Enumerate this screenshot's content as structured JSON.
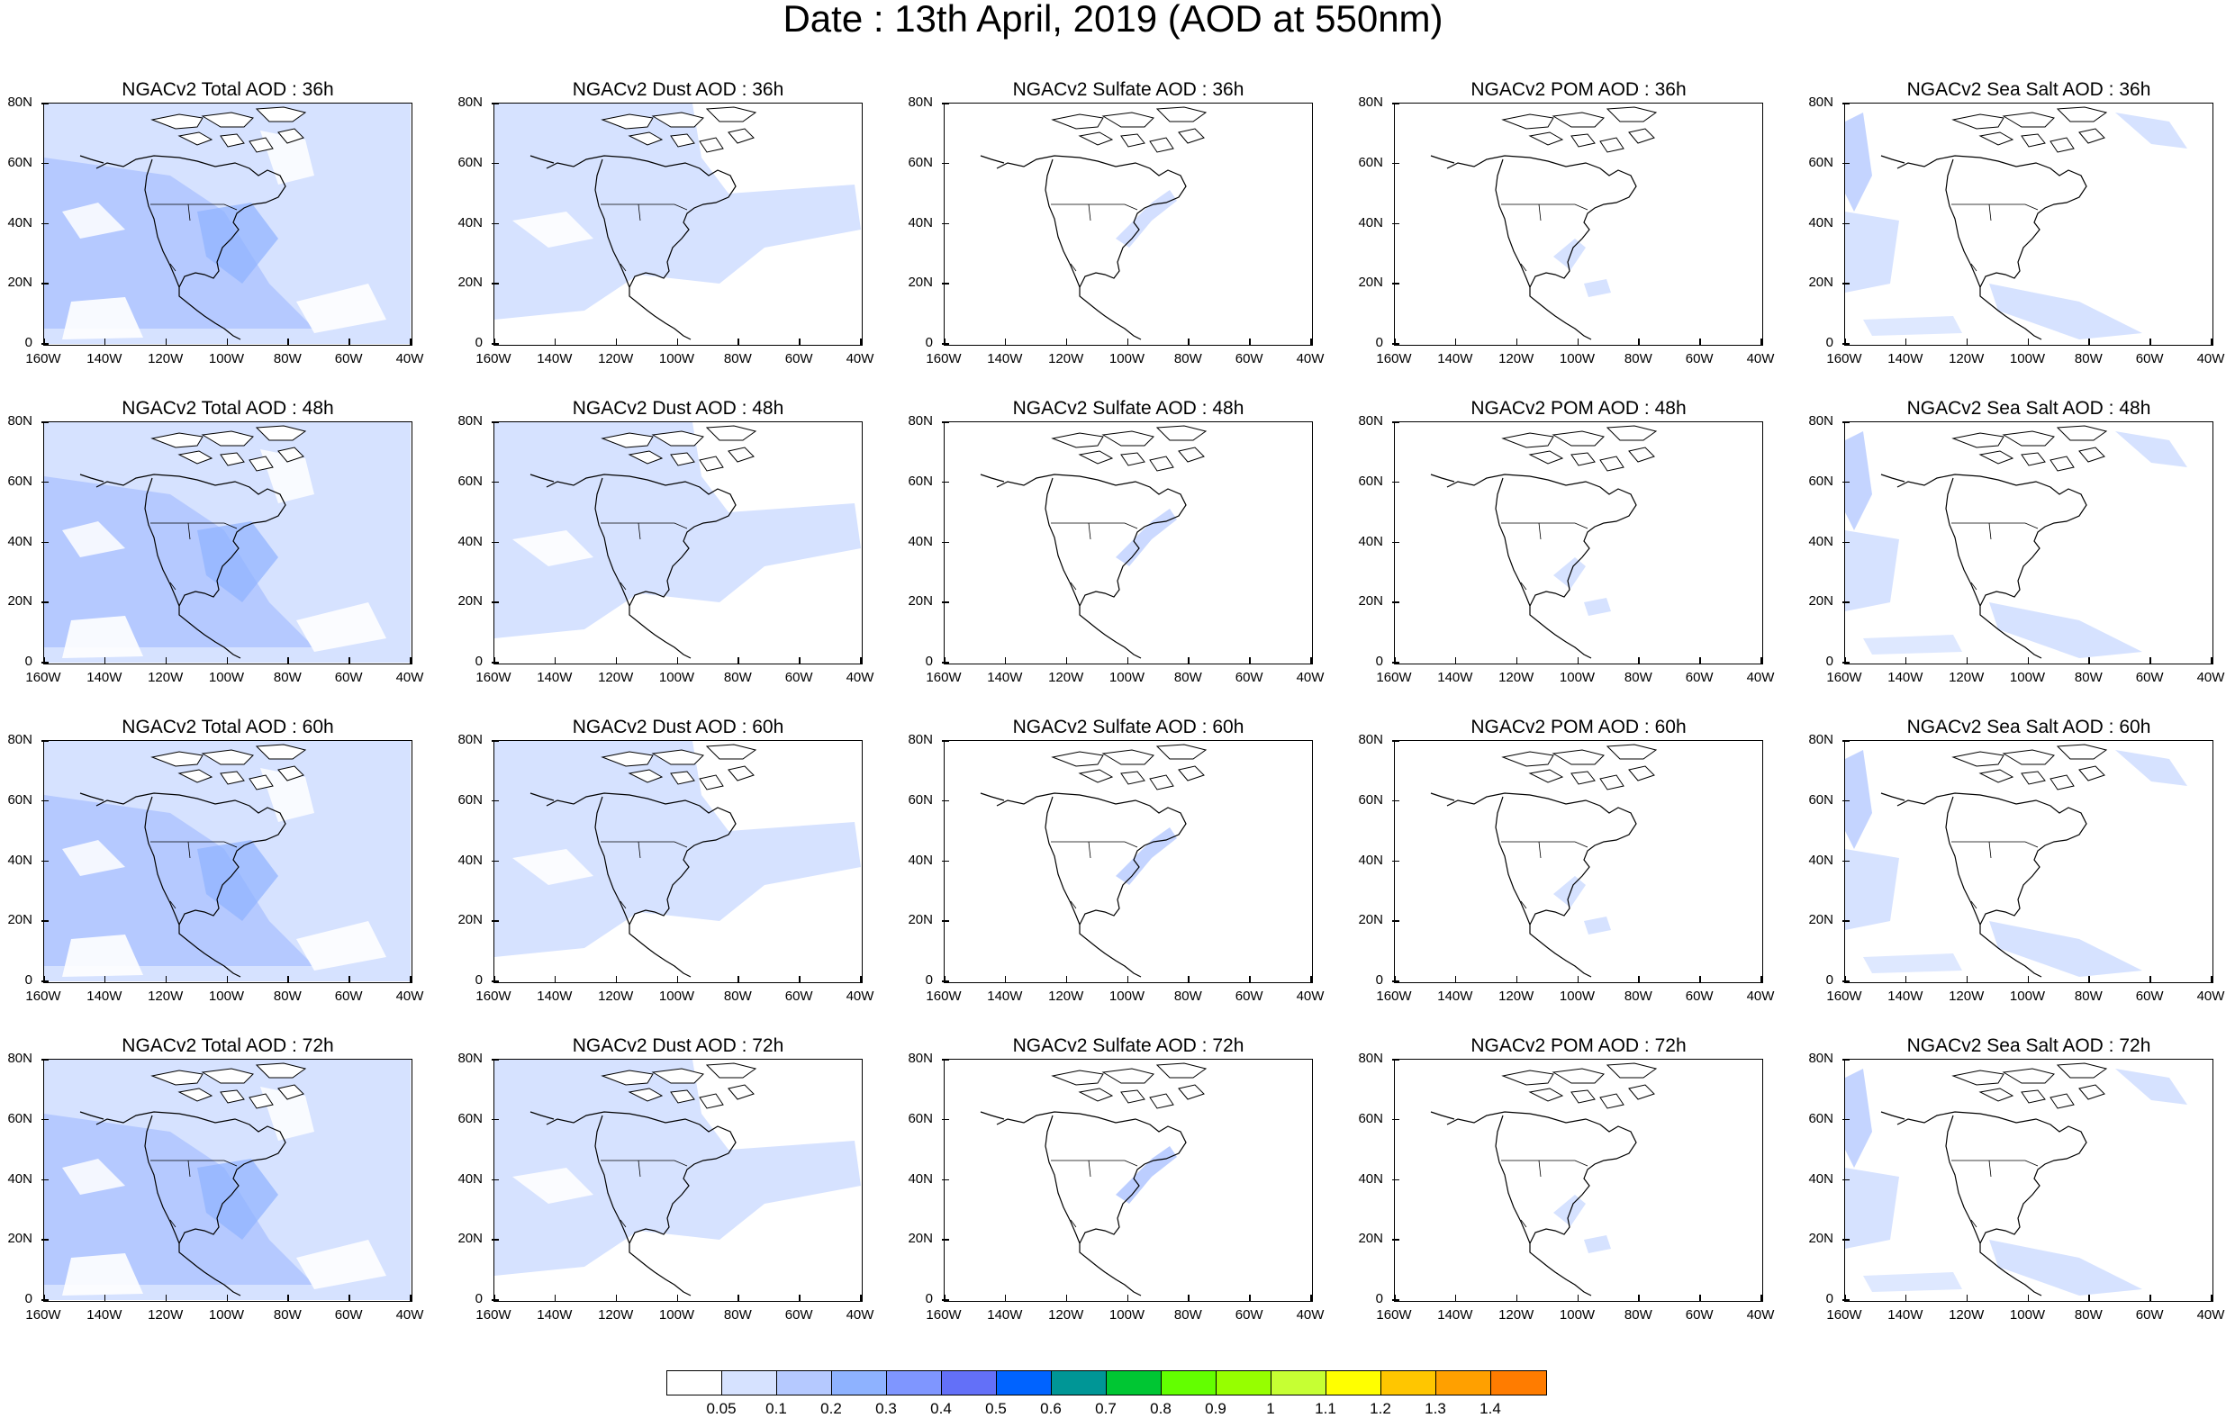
{
  "title": "Date : 13th April, 2019 (AOD at 550nm)",
  "panels": [
    [
      "NGACv2 Total AOD : 36h",
      "NGACv2 Dust AOD : 36h",
      "NGACv2 Sulfate AOD : 36h",
      "NGACv2 POM AOD : 36h",
      "NGACv2 Sea Salt AOD : 36h"
    ],
    [
      "NGACv2 Total AOD : 48h",
      "NGACv2 Dust AOD : 48h",
      "NGACv2 Sulfate AOD : 48h",
      "NGACv2 POM AOD : 48h",
      "NGACv2 Sea Salt AOD : 48h"
    ],
    [
      "NGACv2 Total AOD : 60h",
      "NGACv2 Dust AOD : 60h",
      "NGACv2 Sulfate AOD : 60h",
      "NGACv2 POM AOD : 60h",
      "NGACv2 Sea Salt AOD : 60h"
    ],
    [
      "NGACv2 Total AOD : 72h",
      "NGACv2 Dust AOD : 72h",
      "NGACv2 Sulfate AOD : 72h",
      "NGACv2 POM AOD : 72h",
      "NGACv2 Sea Salt  AOD : 72h"
    ]
  ],
  "lat_labels": [
    "80N",
    "60N",
    "40N",
    "20N",
    "0"
  ],
  "lon_labels": [
    "160W",
    "140W",
    "120W",
    "100W",
    "80W",
    "60W",
    "40W"
  ],
  "colorbar": {
    "colors": [
      "#ffffff",
      "#d6e2ff",
      "#b5c9ff",
      "#8eb2ff",
      "#7f96ff",
      "#6370f8",
      "#0063ff",
      "#009696",
      "#00c633",
      "#63ff00",
      "#96ff00",
      "#c6ff33",
      "#ffff00",
      "#ffc600",
      "#ffa000",
      "#ff7c00",
      "#ff1900"
    ],
    "labels": [
      "0.05",
      "0.1",
      "0.2",
      "0.3",
      "0.4",
      "0.5",
      "0.6",
      "0.7",
      "0.8",
      "0.9",
      "1",
      "1.1",
      "1.2",
      "1.3",
      "1.4"
    ]
  },
  "aod_levels": {
    "Total": "0.1-0.3 widespread",
    "Dust": "0.05-0.1 west",
    "Sulfate": "<0.1 east coast",
    "POM": "<0.1 southeast",
    "Sea Salt": "0.05-0.1 oceans"
  }
}
